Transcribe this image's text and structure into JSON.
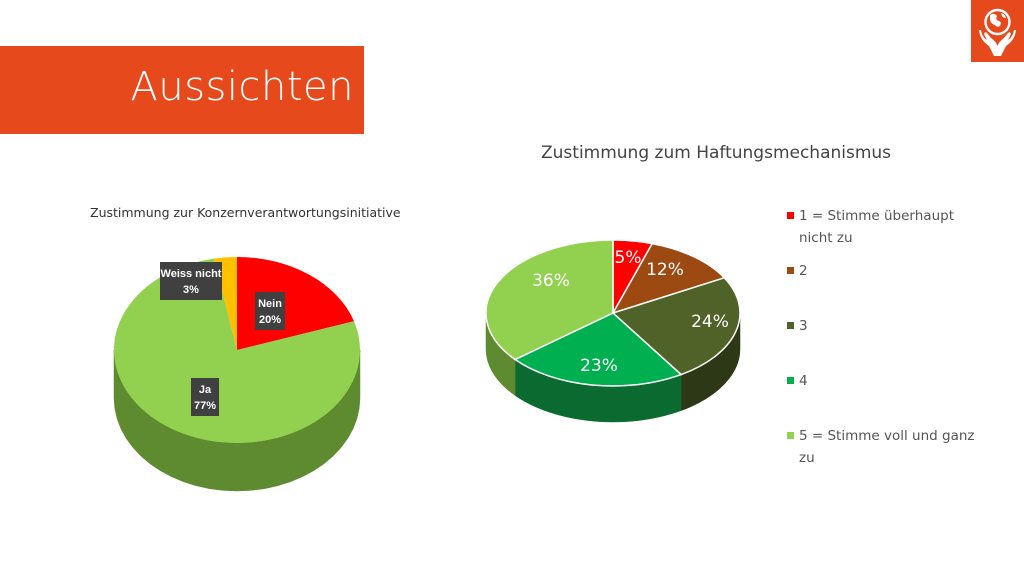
{
  "slide": {
    "title": "Aussichten",
    "logo_icon": "globe-in-hands-icon",
    "accent_color": "#E5491C"
  },
  "chart_data": [
    {
      "type": "pie",
      "title": "Zustimmung zur Konzernverantwortungsinitiative",
      "slices": [
        {
          "label": "Nein",
          "value_label": "20%",
          "value": 20,
          "color": "#FF0000",
          "side_color": "#B80000"
        },
        {
          "label": "Ja",
          "value_label": "77%",
          "value": 77,
          "color": "#92D050",
          "side_color": "#5E8A30"
        },
        {
          "label": "Weiss nicht",
          "value_label": "3%",
          "value": 3,
          "color": "#FFC000",
          "side_color": "#B38600"
        }
      ],
      "legend": null
    },
    {
      "type": "pie",
      "title": "Zustimmung zum Haftungsmechanismus",
      "slices": [
        {
          "label": "1 = Stimme überhaupt nicht zu",
          "value_label": "5%",
          "value": 5,
          "color": "#FF0000",
          "side_color": "#B00000"
        },
        {
          "label": "2",
          "value_label": "12%",
          "value": 12,
          "color": "#9C4A12",
          "side_color": "#63300A"
        },
        {
          "label": "3",
          "value_label": "24%",
          "value": 24,
          "color": "#4F6228",
          "side_color": "#2C3816"
        },
        {
          "label": "4",
          "value_label": "23%",
          "value": 23,
          "color": "#00B050",
          "side_color": "#0A6A30"
        },
        {
          "label": "5 = Stimme voll und ganz zu",
          "value_label": "36%",
          "value": 36,
          "color": "#92D050",
          "side_color": "#5E8A30"
        }
      ],
      "legend": "right"
    }
  ]
}
